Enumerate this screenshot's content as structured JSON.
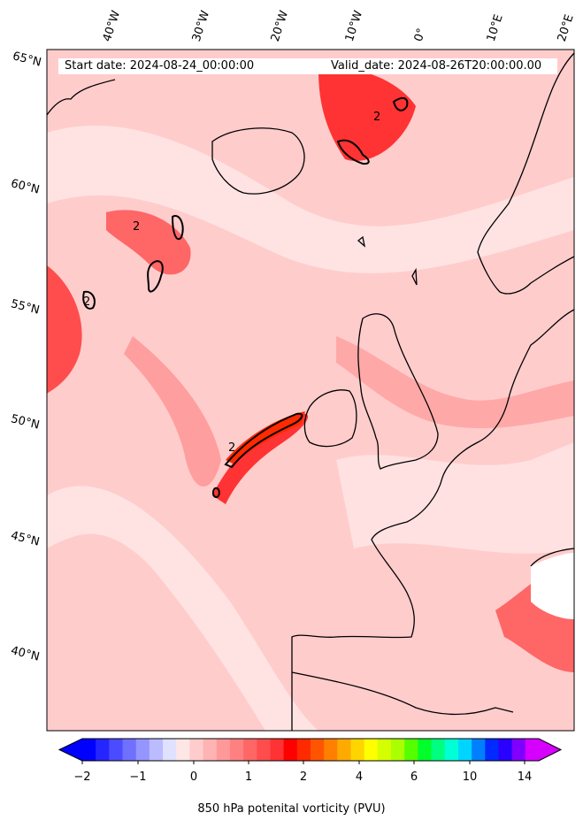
{
  "map": {
    "start_date_label": "Start date: 2024-08-24_00:00:00",
    "valid_date_label": "Valid_date: 2024-08-26T20:00:00.00",
    "longitude_labels": [
      "40°W",
      "30°W",
      "20°W",
      "10°W",
      "0°",
      "10°E",
      "20°E"
    ],
    "latitude_labels": [
      "65°N",
      "60°N",
      "55°N",
      "50°N",
      "45°N",
      "40°N"
    ],
    "contour_label": "2",
    "colorbar": {
      "title": "850 hPa potenital vorticity (PVU)",
      "tick_labels": [
        "−2",
        "−1",
        "0",
        "1",
        "2",
        "4",
        "6",
        "10",
        "14"
      ],
      "colors": [
        "#0000ff",
        "#2525ff",
        "#4b4bff",
        "#7070ff",
        "#9595ff",
        "#bbbbff",
        "#e0e0ff",
        "#ffe6e6",
        "#ffcccc",
        "#ffb3b3",
        "#ff9999",
        "#ff8080",
        "#ff6666",
        "#ff4d4d",
        "#ff3333",
        "#ff0000",
        "#ff2a00",
        "#ff5500",
        "#ff8000",
        "#ffaa00",
        "#ffd500",
        "#ffff00",
        "#d5ff00",
        "#aaff00",
        "#55ff00",
        "#00ff2a",
        "#00ff80",
        "#00ffd5",
        "#00d5ff",
        "#0080ff",
        "#002aff",
        "#2a00ff",
        "#8000ff",
        "#d500ff"
      ]
    }
  }
}
